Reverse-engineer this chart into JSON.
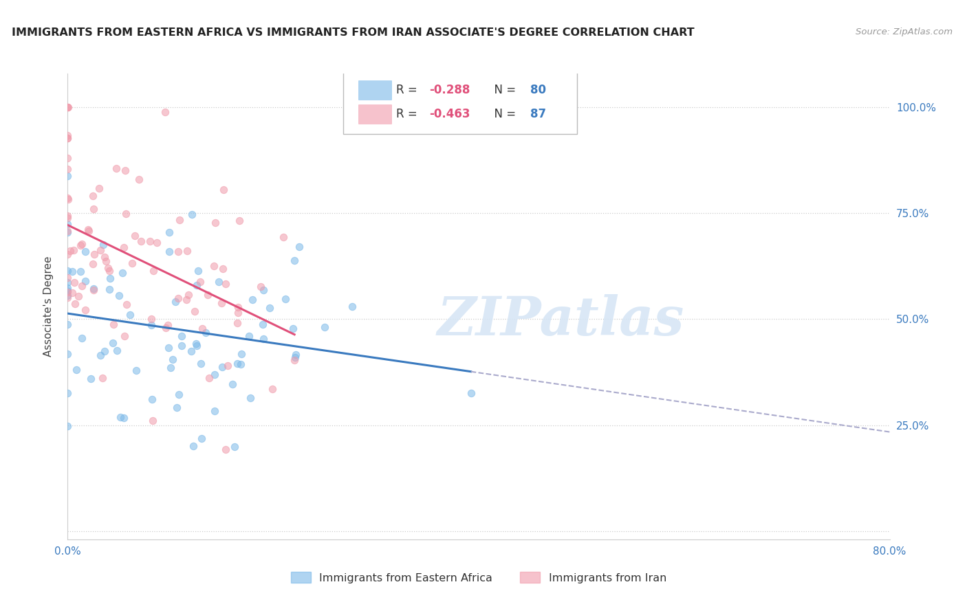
{
  "title": "IMMIGRANTS FROM EASTERN AFRICA VS IMMIGRANTS FROM IRAN ASSOCIATE'S DEGREE CORRELATION CHART",
  "source": "Source: ZipAtlas.com",
  "ylabel": "Associate's Degree",
  "right_ytick_labels": [
    "100.0%",
    "75.0%",
    "50.0%",
    "25.0%"
  ],
  "right_ytick_values": [
    1.0,
    0.75,
    0.5,
    0.25
  ],
  "xlim": [
    0.0,
    0.8
  ],
  "ylim": [
    -0.02,
    1.08
  ],
  "xtick_values": [
    0.0,
    0.1,
    0.2,
    0.3,
    0.4,
    0.5,
    0.6,
    0.7,
    0.8
  ],
  "xtick_labels": [
    "0.0%",
    "",
    "",
    "",
    "",
    "",
    "",
    "",
    "80.0%"
  ],
  "series1_name": "Immigrants from Eastern Africa",
  "series2_name": "Immigrants from Iran",
  "series1_color": "#7ab8e8",
  "series2_color": "#f09aaa",
  "series1_R": -0.288,
  "series1_N": 80,
  "series2_R": -0.463,
  "series2_N": 87,
  "series1_line_color": "#3a7abf",
  "series2_line_color": "#e0507a",
  "dash_color": "#aaaacc",
  "watermark": "ZIPatlas",
  "background_color": "#ffffff",
  "grid_color": "#cccccc",
  "grid_style": "dotted"
}
